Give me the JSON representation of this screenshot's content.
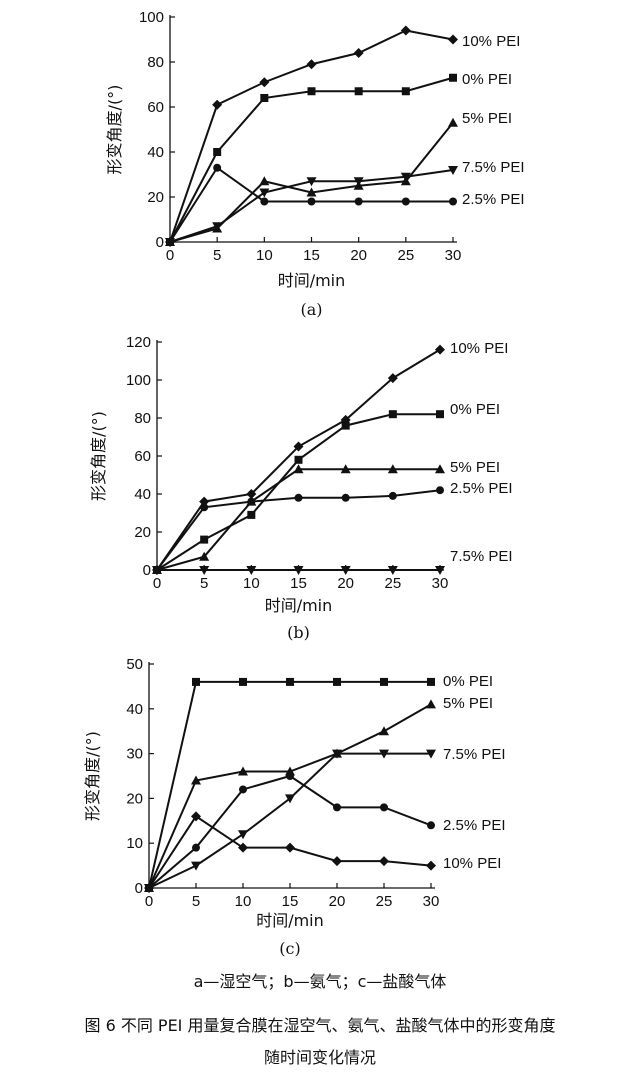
{
  "chart_data": [
    {
      "type": "line",
      "panel_label": "(a)",
      "xlabel": "时间/min",
      "ylabel": "形变角度/(°)",
      "xlim": [
        0,
        30
      ],
      "ylim": [
        0,
        100
      ],
      "xticks": [
        0,
        5,
        10,
        15,
        20,
        25,
        30
      ],
      "yticks": [
        0,
        20,
        40,
        60,
        80,
        100
      ],
      "x": [
        0,
        5,
        10,
        15,
        20,
        25,
        30
      ],
      "series": [
        {
          "name": "10% PEI",
          "marker": "diamond",
          "values": [
            0,
            61,
            71,
            79,
            84,
            94,
            90
          ]
        },
        {
          "name": "0% PEI",
          "marker": "square",
          "values": [
            0,
            40,
            64,
            67,
            67,
            67,
            73
          ]
        },
        {
          "name": "5% PEI",
          "marker": "triangle-up",
          "values": [
            0,
            6,
            27,
            22,
            25,
            27,
            53
          ]
        },
        {
          "name": "7.5% PEI",
          "marker": "triangle-down",
          "values": [
            0,
            7,
            22,
            27,
            27,
            29,
            32
          ]
        },
        {
          "name": "2.5% PEI",
          "marker": "circle",
          "values": [
            0,
            33,
            18,
            18,
            18,
            18,
            18
          ]
        }
      ]
    },
    {
      "type": "line",
      "panel_label": "(b)",
      "xlabel": "时间/min",
      "ylabel": "形变角度/(°)",
      "xlim": [
        0,
        30
      ],
      "ylim": [
        0,
        120
      ],
      "xticks": [
        0,
        5,
        10,
        15,
        20,
        25,
        30
      ],
      "yticks": [
        0,
        20,
        40,
        60,
        80,
        100,
        120
      ],
      "x": [
        0,
        5,
        10,
        15,
        20,
        25,
        30
      ],
      "series": [
        {
          "name": "10% PEI",
          "marker": "diamond",
          "values": [
            0,
            36,
            40,
            65,
            79,
            101,
            116
          ]
        },
        {
          "name": "0% PEI",
          "marker": "square",
          "values": [
            0,
            16,
            29,
            58,
            76,
            82,
            82
          ]
        },
        {
          "name": "5% PEI",
          "marker": "triangle-up",
          "values": [
            0,
            7,
            36,
            53,
            53,
            53,
            53
          ]
        },
        {
          "name": "2.5% PEI",
          "marker": "circle",
          "values": [
            0,
            33,
            36,
            38,
            38,
            39,
            42
          ]
        },
        {
          "name": "7.5% PEI",
          "marker": "triangle-down",
          "values": [
            0,
            0,
            0,
            0,
            0,
            0,
            0
          ]
        }
      ]
    },
    {
      "type": "line",
      "panel_label": "(c)",
      "xlabel": "时间/min",
      "ylabel": "形变角度/(°)",
      "xlim": [
        0,
        30
      ],
      "ylim": [
        0,
        50
      ],
      "xticks": [
        0,
        5,
        10,
        15,
        20,
        25,
        30
      ],
      "yticks": [
        0,
        10,
        20,
        30,
        40,
        50
      ],
      "x": [
        0,
        5,
        10,
        15,
        20,
        25,
        30
      ],
      "series": [
        {
          "name": "0% PEI",
          "marker": "square",
          "values": [
            0,
            46,
            46,
            46,
            46,
            46,
            46
          ]
        },
        {
          "name": "5% PEI",
          "marker": "triangle-up",
          "values": [
            0,
            24,
            26,
            26,
            30,
            35,
            41
          ]
        },
        {
          "name": "7.5% PEI",
          "marker": "triangle-down",
          "values": [
            0,
            5,
            12,
            20,
            30,
            30,
            30
          ]
        },
        {
          "name": "2.5% PEI",
          "marker": "circle",
          "values": [
            0,
            9,
            22,
            25,
            18,
            18,
            14
          ]
        },
        {
          "name": "10% PEI",
          "marker": "diamond",
          "values": [
            0,
            16,
            9,
            9,
            6,
            6,
            5
          ]
        }
      ]
    }
  ],
  "legend_text": "a—湿空气；b—氨气；c—盐酸气体",
  "figure_caption_line1": "图 6   不同 PEI 用量复合膜在湿空气、氨气、盐酸气体中的形变角度",
  "figure_caption_line2": "随时间变化情况"
}
